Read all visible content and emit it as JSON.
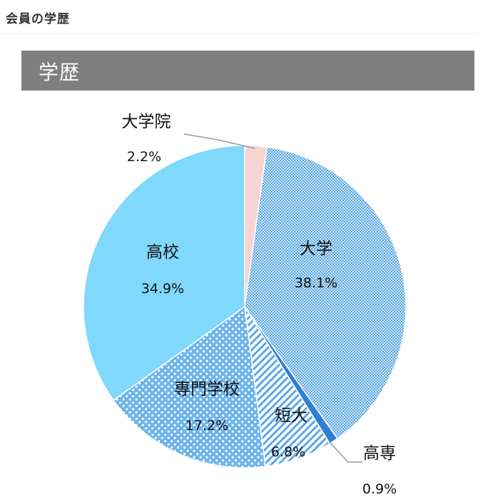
{
  "header": {
    "title": "会員の学歴"
  },
  "section": {
    "title": "学歴"
  },
  "chart_data": {
    "type": "pie",
    "title": "学歴",
    "start_angle_deg": 0,
    "direction": "clockwise",
    "slices": [
      {
        "label": "大学院",
        "value_label": "2.2%",
        "value": 2.2,
        "color": "#f7d4d4",
        "pattern": "solid"
      },
      {
        "label": "大学",
        "value_label": "38.1%",
        "value": 38.1,
        "color": "#7fc3ef",
        "pattern": "fine-dots"
      },
      {
        "label": "高専",
        "value_label": "0.9%",
        "value": 0.9,
        "color": "#2f7fd4",
        "pattern": "solid"
      },
      {
        "label": "短大",
        "value_label": "6.8%",
        "value": 6.8,
        "color": "#5aa8e6",
        "pattern": "diagonal-stripes"
      },
      {
        "label": "専門学校",
        "value_label": "17.2%",
        "value": 17.2,
        "color": "#6cb4ec",
        "pattern": "large-dots"
      },
      {
        "label": "高校",
        "value_label": "34.9%",
        "value": 34.9,
        "color": "#80d8fc",
        "pattern": "solid"
      }
    ]
  }
}
